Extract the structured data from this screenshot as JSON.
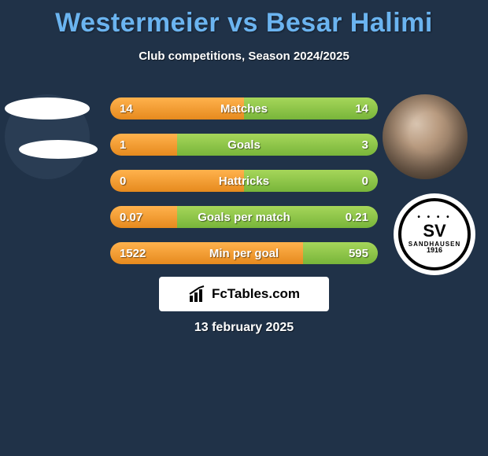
{
  "title": "Westermeier vs Besar Halimi",
  "subtitle": "Club competitions, Season 2024/2025",
  "date": "13 february 2025",
  "brand": "FcTables.com",
  "colors": {
    "background": "#203248",
    "title": "#6bb4f0",
    "left_bar": "#e68a1e",
    "right_bar": "#78b53a",
    "text": "#ffffff"
  },
  "club_right": {
    "name": "SV Sandhausen",
    "initials": "SV",
    "arc_top": "• • • •",
    "arc_bottom": "SANDHAUSEN",
    "year": "1916"
  },
  "bars": [
    {
      "label": "Matches",
      "left_val": "14",
      "right_val": "14",
      "left_pct": 50,
      "right_pct": 50
    },
    {
      "label": "Goals",
      "left_val": "1",
      "right_val": "3",
      "left_pct": 25,
      "right_pct": 75
    },
    {
      "label": "Hattricks",
      "left_val": "0",
      "right_val": "0",
      "left_pct": 50,
      "right_pct": 50
    },
    {
      "label": "Goals per match",
      "left_val": "0.07",
      "right_val": "0.21",
      "left_pct": 25,
      "right_pct": 75
    },
    {
      "label": "Min per goal",
      "left_val": "1522",
      "right_val": "595",
      "left_pct": 72,
      "right_pct": 28
    }
  ]
}
